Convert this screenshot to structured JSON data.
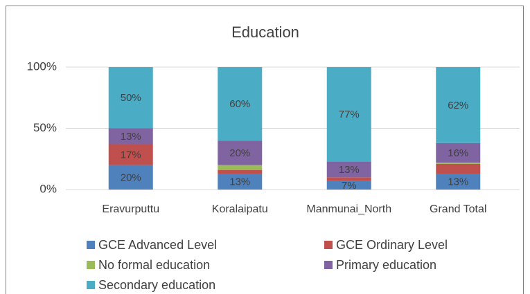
{
  "chart_data": {
    "type": "stacked_bar",
    "title": "Education",
    "categories": [
      "Eravurputtu",
      "Koralaipatu",
      "Manmunai_North",
      "Grand Total"
    ],
    "series": [
      {
        "name": "GCE Advanced Level",
        "color": "#4f81bd",
        "values": [
          20,
          13,
          7,
          13
        ],
        "value_labels": [
          "20%",
          "13%",
          "7%",
          "13%"
        ]
      },
      {
        "name": "GCE Ordinary Level",
        "color": "#c0504d",
        "values": [
          17,
          3,
          3,
          8
        ],
        "value_labels": [
          "17%",
          null,
          null,
          null
        ]
      },
      {
        "name": "No formal education",
        "color": "#9bbb59",
        "values": [
          0,
          4,
          0,
          1
        ],
        "value_labels": [
          null,
          null,
          null,
          null
        ]
      },
      {
        "name": "Primary education",
        "color": "#8064a2",
        "values": [
          13,
          20,
          13,
          16
        ],
        "value_labels": [
          "13%",
          "20%",
          "13%",
          "16%"
        ]
      },
      {
        "name": "Secondary education",
        "color": "#4bacc6",
        "values": [
          50,
          60,
          77,
          62
        ],
        "value_labels": [
          "50%",
          "60%",
          "77%",
          "62%"
        ]
      }
    ],
    "ylim": [
      0,
      100
    ],
    "yticks": [
      {
        "value": 0,
        "label": "0%"
      },
      {
        "value": 50,
        "label": "50%"
      },
      {
        "value": 100,
        "label": "100%"
      }
    ],
    "grid": true,
    "legend": "bottom"
  }
}
